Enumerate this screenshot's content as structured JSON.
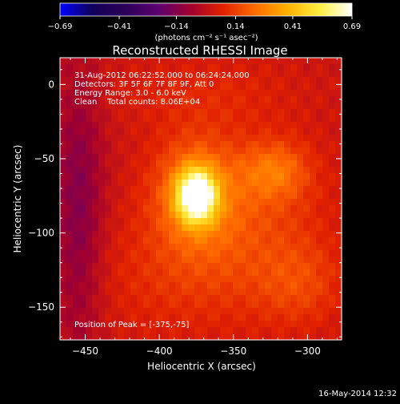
{
  "chart_data": {
    "type": "heatmap",
    "title": "Reconstructed RHESSI Image",
    "xlabel": "Heliocentric X (arcsec)",
    "ylabel": "Heliocentric Y (arcsec)",
    "xlim": [
      -467,
      -277
    ],
    "ylim": [
      -172,
      18
    ],
    "xticks": [
      {
        "value": -450,
        "label": "−450"
      },
      {
        "value": -400,
        "label": "−400"
      },
      {
        "value": -350,
        "label": "−350"
      },
      {
        "value": -300,
        "label": "−300"
      }
    ],
    "yticks": [
      {
        "value": 0,
        "label": "0"
      },
      {
        "value": -50,
        "label": "−50"
      },
      {
        "value": -100,
        "label": "−100"
      },
      {
        "value": -150,
        "label": "−150"
      }
    ],
    "colorbar": {
      "min": -0.69,
      "max": 0.69,
      "ticks": [
        {
          "value": -0.69,
          "label": "−0.69"
        },
        {
          "value": -0.41,
          "label": "−0.41"
        },
        {
          "value": -0.14,
          "label": "−0.14"
        },
        {
          "value": 0.14,
          "label": "0.14"
        },
        {
          "value": 0.41,
          "label": "0.41"
        },
        {
          "value": 0.69,
          "label": "0.69"
        }
      ],
      "units": "(photons cm⁻² s⁻¹ asec⁻²)",
      "stops": [
        "#0000ff",
        "#10005a",
        "#2a0058",
        "#5a0070",
        "#a00030",
        "#e02000",
        "#ff6a00",
        "#ffb000",
        "#ffee40",
        "#ffffff"
      ]
    },
    "annotations": [
      "31-Aug-2012 06:22:52.000 to 06:24:24.000",
      "Detectors: 3F 5F 6F 7F 8F 9F, Att 0",
      "Energy Range: 3.0 - 6.0 keV",
      "Clean    Total counts: 8.06E+04"
    ],
    "peak_label": "Position of Peak = [-375,-75]",
    "peak": {
      "x": -375,
      "y": -75,
      "value": 0.69
    },
    "features": [
      {
        "x": -375,
        "y": -75,
        "sx": 9,
        "sy": 12,
        "amp": 0.62
      },
      {
        "x": -376,
        "y": -72,
        "sx": 20,
        "sy": 26,
        "amp": 0.22
      },
      {
        "x": -322,
        "y": -58,
        "sx": 16,
        "sy": 14,
        "amp": 0.18
      },
      {
        "x": -340,
        "y": -95,
        "sx": 38,
        "sy": 40,
        "amp": 0.12
      },
      {
        "x": -305,
        "y": -135,
        "sx": 20,
        "sy": 20,
        "amp": 0.1
      },
      {
        "x": -370,
        "y": -5,
        "sx": 45,
        "sy": 18,
        "amp": 0.06
      },
      {
        "x": -395,
        "y": -130,
        "sx": 40,
        "sy": 30,
        "amp": 0.07
      },
      {
        "x": -455,
        "y": -85,
        "sx": 12,
        "sy": 70,
        "amp": -0.16
      }
    ]
  },
  "footer": {
    "timestamp": "16-May-2014 12:32"
  }
}
